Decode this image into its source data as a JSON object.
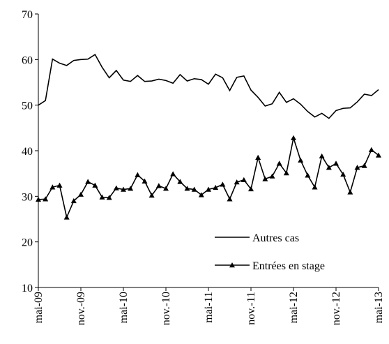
{
  "chart_data": {
    "type": "line",
    "categories": [
      "mai-09",
      null,
      null,
      null,
      null,
      null,
      "nov.-09",
      null,
      null,
      null,
      null,
      null,
      "mai-10",
      null,
      null,
      null,
      null,
      null,
      "nov.-10",
      null,
      null,
      null,
      null,
      null,
      "mai-11",
      null,
      null,
      null,
      null,
      null,
      "nov.-11",
      null,
      null,
      null,
      null,
      null,
      "mai-12",
      null,
      null,
      null,
      null,
      null,
      "nov.-12",
      null,
      null,
      null,
      null,
      null,
      "mai-13"
    ],
    "series": [
      {
        "name": "Autres cas",
        "color": "#000000",
        "marker": "none",
        "values": [
          50,
          51,
          60.1,
          59.2,
          58.7,
          59.8,
          60,
          60.1,
          61.1,
          58.3,
          56,
          57.6,
          55.5,
          55.2,
          56.5,
          55.2,
          55.3,
          55.7,
          55.4,
          54.8,
          56.7,
          55.3,
          55.8,
          55.6,
          54.6,
          56.8,
          56,
          53.2,
          56.1,
          56.4,
          53.3,
          51.7,
          49.8,
          50.3,
          52.8,
          50.6,
          51.4,
          50.2,
          48.6,
          47.4,
          48.2,
          47.1,
          48.8,
          49.3,
          49.4,
          50.7,
          52.4,
          52.1,
          53.4
        ]
      },
      {
        "name": "Entrées en stage",
        "color": "#000000",
        "marker": "triangle",
        "values": [
          29.3,
          29.4,
          32,
          32.4,
          25.4,
          29,
          30.4,
          33.2,
          32.4,
          29.8,
          29.7,
          31.8,
          31.5,
          31.7,
          34.7,
          33.3,
          30.2,
          32.3,
          31.7,
          34.9,
          33.2,
          31.7,
          31.5,
          30.3,
          31.5,
          31.9,
          32.6,
          29.4,
          33.1,
          33.6,
          31.6,
          38.5,
          33.8,
          34.4,
          37.2,
          35.1,
          42.8,
          37.9,
          34.6,
          32,
          38.8,
          36.3,
          37.2,
          34.8,
          30.9,
          36.3,
          36.7,
          40.2,
          39
        ]
      }
    ],
    "ylim": [
      10,
      70
    ],
    "yticks": [
      10,
      20,
      30,
      40,
      50,
      60,
      70
    ],
    "grid": false,
    "legend": "lower right"
  }
}
